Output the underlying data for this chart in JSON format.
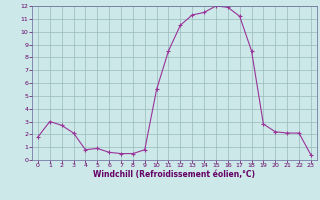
{
  "x": [
    0,
    1,
    2,
    3,
    4,
    5,
    6,
    7,
    8,
    9,
    10,
    11,
    12,
    13,
    14,
    15,
    16,
    17,
    18,
    19,
    20,
    21,
    22,
    23
  ],
  "y": [
    1.8,
    3.0,
    2.7,
    2.1,
    0.8,
    0.9,
    0.6,
    0.5,
    0.5,
    0.8,
    5.5,
    8.5,
    10.5,
    11.3,
    11.5,
    12.0,
    11.9,
    11.2,
    8.5,
    2.8,
    2.2,
    2.1,
    2.1,
    0.4
  ],
  "xlabel": "Windchill (Refroidissement éolien,°C)",
  "xlim_min": -0.5,
  "xlim_max": 23.5,
  "ylim_min": 0,
  "ylim_max": 12,
  "xticks": [
    0,
    1,
    2,
    3,
    4,
    5,
    6,
    7,
    8,
    9,
    10,
    11,
    12,
    13,
    14,
    15,
    16,
    17,
    18,
    19,
    20,
    21,
    22,
    23
  ],
  "yticks": [
    0,
    1,
    2,
    3,
    4,
    5,
    6,
    7,
    8,
    9,
    10,
    11,
    12
  ],
  "line_color": "#993399",
  "marker": "+",
  "bg_color": "#cce8e8",
  "grid_color": "#99bbbb",
  "xlabel_color": "#660066",
  "tick_color": "#660066",
  "spine_color": "#666699"
}
